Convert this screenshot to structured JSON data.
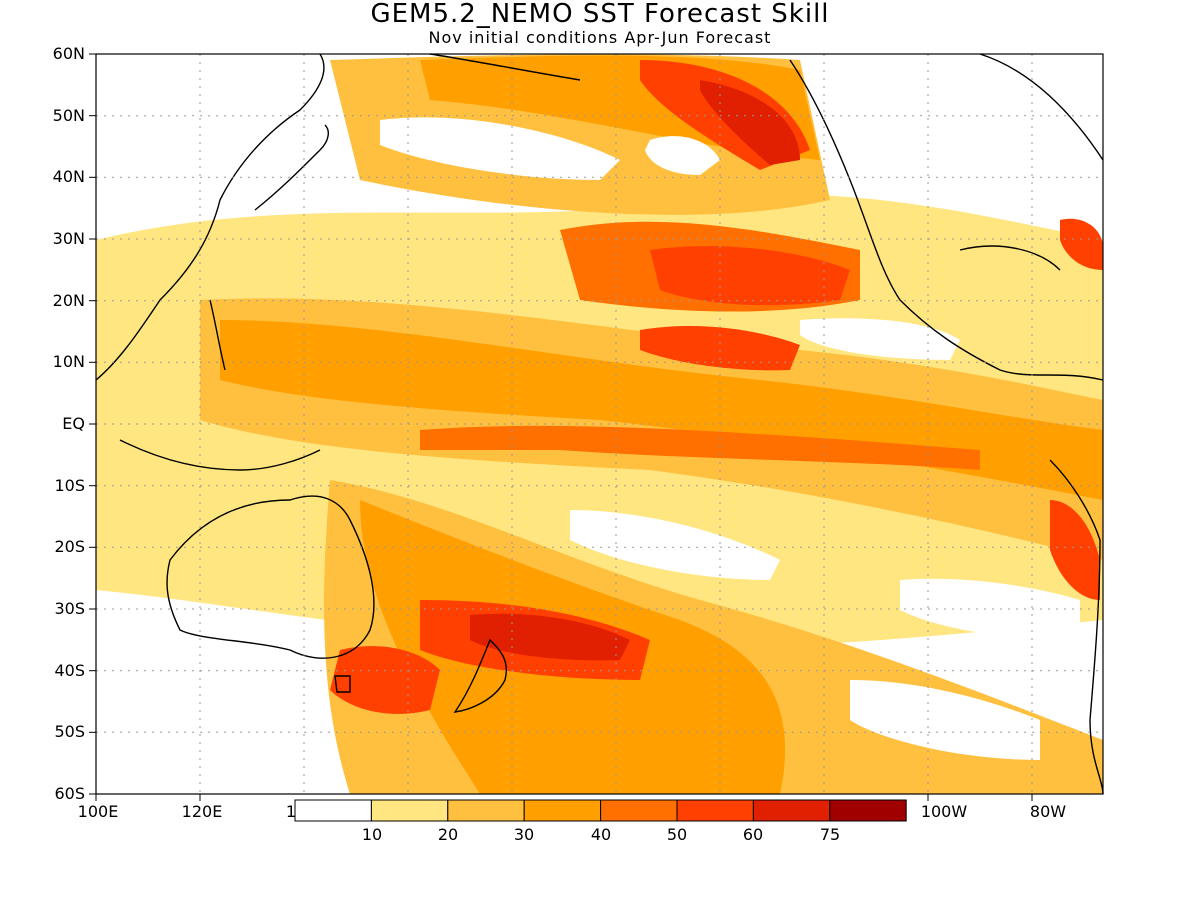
{
  "title": "GEM5.2_NEMO SST Forecast Skill",
  "subtitle": "Nov initial conditions  Apr-Jun Forecast",
  "map": {
    "lat_labels": [
      "60N",
      "50N",
      "40N",
      "30N",
      "20N",
      "10N",
      "EQ",
      "10S",
      "20S",
      "30S",
      "40S",
      "50S",
      "60S"
    ],
    "lon_labels_left": [
      "100E",
      "120E",
      "1"
    ],
    "lon_labels_right": [
      "100W",
      "80W"
    ],
    "gridlines": true
  },
  "colorbar": {
    "levels": [
      "10",
      "20",
      "30",
      "40",
      "50",
      "60",
      "75"
    ],
    "colors": [
      "#ffffff",
      "#ffe680",
      "#ffc040",
      "#ffa000",
      "#ff7000",
      "#ff4000",
      "#e02000",
      "#a00000"
    ]
  }
}
